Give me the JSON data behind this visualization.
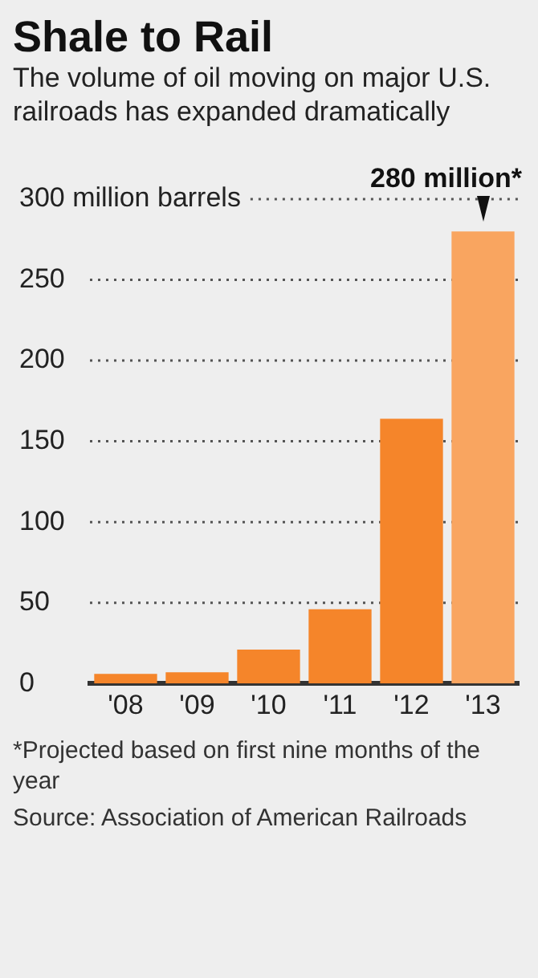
{
  "chart_data": {
    "type": "bar",
    "title": "Shale to Rail",
    "subtitle": "The volume of oil moving on major U.S. railroads has expanded dramatically",
    "categories": [
      "'08",
      "'09",
      "'10",
      "'11",
      "'12",
      "'13"
    ],
    "values": [
      6,
      7,
      21,
      46,
      164,
      280
    ],
    "colors": [
      "#f5852a",
      "#f5852a",
      "#f5852a",
      "#f5852a",
      "#f5852a",
      "#f9a560"
    ],
    "ylim": [
      0,
      300
    ],
    "yticks": [
      0,
      50,
      100,
      150,
      200,
      250,
      {
        "value": 300,
        "label": "300 million barrels"
      }
    ],
    "grid": "y",
    "annotations": [
      {
        "text": "280 million*",
        "x": "'13",
        "y": 280
      },
      "*Projected based on first nine months of the year",
      "Source: Association of American Railroads"
    ]
  }
}
